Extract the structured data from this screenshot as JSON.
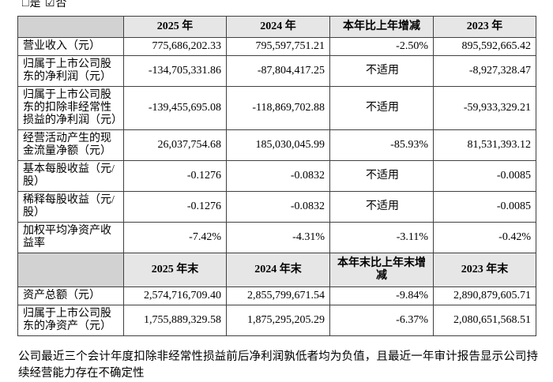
{
  "page": {
    "checkbox_line": "□是 ☑否",
    "footer_note": "公司最近三个会计年度扣除非经常性损益前后净利润孰低者均为负值，且最近一年审计报告显示公司持续经营能力存在不确定性"
  },
  "colors": {
    "border": "#404040",
    "header_label_bg": "#d2d2d2",
    "header_value_bg": "#e6e6e6"
  },
  "table": {
    "header_row_1": {
      "c0": "",
      "c1": "2025 年",
      "c2": "2024 年",
      "c3": "本年比上年增减",
      "c4": "2023 年"
    },
    "rows_period": [
      {
        "label": "营业收入（元）",
        "y2025": "775,686,202.33",
        "y2024": "795,597,751.21",
        "change": "-2.50%",
        "y2023": "895,592,665.42"
      },
      {
        "label": "归属于上市公司股东的净利润（元）",
        "y2025": "-134,705,331.86",
        "y2024": "-87,804,417.25",
        "change": "不适用",
        "y2023": "-8,927,328.47"
      },
      {
        "label": "归属于上市公司股东的扣除非经常性损益的净利润（元）",
        "y2025": "-139,455,695.08",
        "y2024": "-118,869,702.88",
        "change": "不适用",
        "y2023": "-59,933,329.21"
      },
      {
        "label": "经营活动产生的现金流量净额（元）",
        "y2025": "26,037,754.68",
        "y2024": "185,030,045.99",
        "change": "-85.93%",
        "y2023": "81,531,393.12"
      },
      {
        "label": "基本每股收益（元/股）",
        "y2025": "-0.1276",
        "y2024": "-0.0832",
        "change": "不适用",
        "y2023": "-0.0085"
      },
      {
        "label": "稀释每股收益（元/股）",
        "y2025": "-0.1276",
        "y2024": "-0.0832",
        "change": "不适用",
        "y2023": "-0.0085"
      },
      {
        "label": "加权平均净资产收益率",
        "y2025": "-7.42%",
        "y2024": "-4.31%",
        "change": "-3.11%",
        "y2023": "-0.42%"
      }
    ],
    "header_row_2": {
      "c0": "",
      "c1": "2025 年末",
      "c2": "2024 年末",
      "c3": "本年末比上年末增减",
      "c4": "2023 年末"
    },
    "rows_yearend": [
      {
        "label": "资产总额（元）",
        "y2025": "2,574,716,709.40",
        "y2024": "2,855,799,671.54",
        "change": "-9.84%",
        "y2023": "2,890,879,605.71"
      },
      {
        "label": "归属于上市公司股东的净资产（元）",
        "y2025": "1,755,889,329.58",
        "y2024": "1,875,295,205.29",
        "change": "-6.37%",
        "y2023": "2,080,651,568.51"
      }
    ]
  }
}
